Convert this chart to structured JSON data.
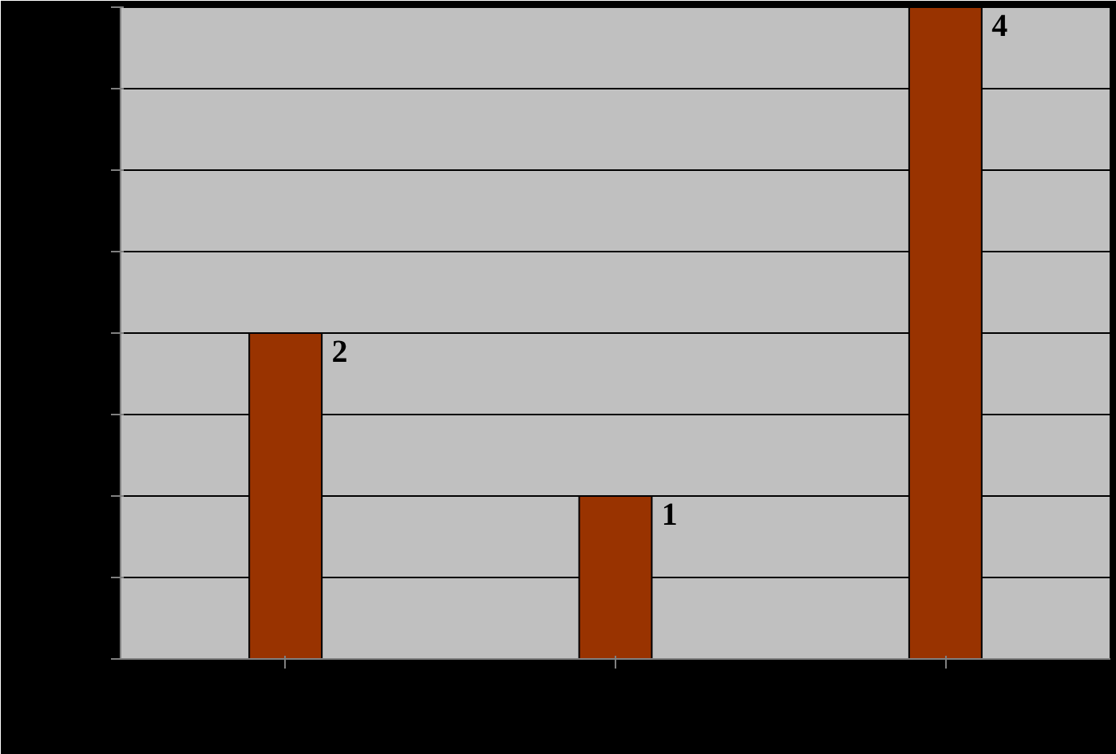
{
  "chart_data": {
    "type": "bar",
    "categories": [
      null,
      null,
      null
    ],
    "values": [
      2,
      1,
      4
    ],
    "color": "#993300",
    "data_labels": true,
    "ylim": [
      0,
      4
    ],
    "yticks": [
      {
        "value": 0,
        "label": null
      },
      {
        "value": 0.5,
        "label": null
      },
      {
        "value": 1,
        "label": null
      },
      {
        "value": 1.5,
        "label": null
      },
      {
        "value": 2,
        "label": null
      },
      {
        "value": 2.5,
        "label": null
      },
      {
        "value": 3,
        "label": null
      },
      {
        "value": 3.5,
        "label": null
      },
      {
        "value": 4,
        "label": null
      }
    ],
    "grid": "y"
  }
}
